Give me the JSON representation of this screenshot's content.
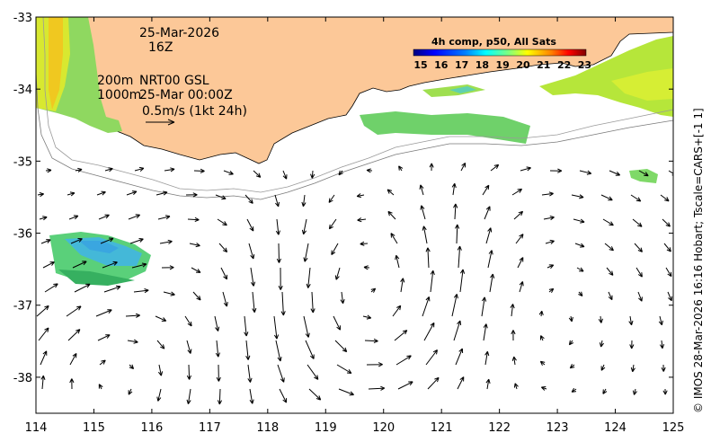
{
  "title_date": "25-Mar-2026",
  "title_hour": "16Z",
  "depth_a": "200m",
  "depth_b": "1000m",
  "current_source": "NRT00 GSL",
  "current_date": "25-Mar 00:00Z",
  "scale_note": "0.5m/s (1kt 24h)",
  "colorbar": {
    "title": "4h comp, p50, All Sats",
    "labels": [
      "15",
      "16",
      "17",
      "18",
      "19",
      "20",
      "21",
      "22",
      "23"
    ],
    "colors": [
      "#00007f",
      "#0000ff",
      "#007fff",
      "#00ffff",
      "#7fff7f",
      "#ffff00",
      "#ff7f00",
      "#ff0000",
      "#7f0000"
    ]
  },
  "credit": "© IMOS 28-Mar-2026 16:16 Hobart; Tscale=CARS+[-1 1]",
  "x_ticks": [
    "114",
    "115",
    "116",
    "117",
    "118",
    "119",
    "120",
    "121",
    "122",
    "123",
    "124",
    "125"
  ],
  "y_ticks": [
    "-33",
    "-34",
    "-35",
    "-36",
    "-37",
    "-38"
  ],
  "colors": {
    "land": "#fcc898",
    "frame": "#000000",
    "sea": "#ffffff"
  },
  "axes": {
    "xlim": [
      114,
      125
    ],
    "ylim": [
      -38.5,
      -33
    ]
  }
}
